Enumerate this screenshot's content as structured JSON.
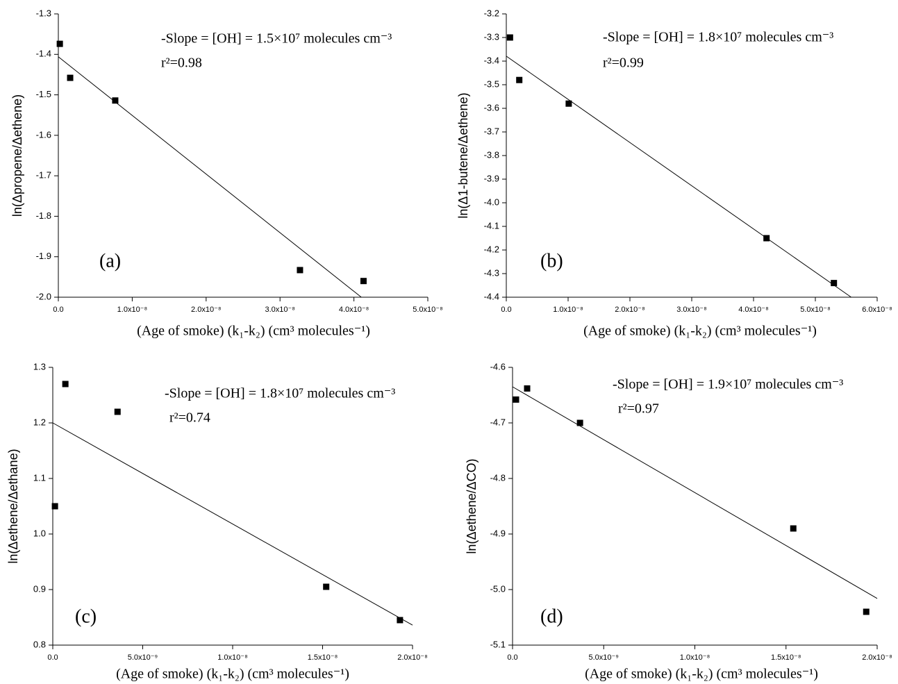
{
  "chart_data": [
    {
      "type": "scatter",
      "xlabel": "(Age of smoke) (k₁-k₂) (cm³ molecules⁻¹)",
      "ylabel": "ln(Δpropene/Δethene)",
      "annotations": [
        "-Slope = [OH] = 1.5×10⁷ molecules cm⁻³",
        "r²=0.98",
        "(a)"
      ],
      "x": [
        2e-10,
        1.6e-09,
        7.7e-09,
        3.27e-08,
        4.13e-08
      ],
      "values": [
        -1.374,
        -1.458,
        -1.514,
        -1.933,
        -1.96
      ],
      "color": "#000000",
      "fit": {
        "x": [
          0,
          4.1e-08
        ],
        "y": [
          -1.406,
          -2.0
        ]
      },
      "xlim": [
        0,
        5e-08
      ],
      "ylim": [
        -2.0,
        -1.3
      ],
      "xticks": [
        {
          "value": 0,
          "label": "0.0"
        },
        {
          "value": 1e-08,
          "label": "1.0x10⁻⁸"
        },
        {
          "value": 2e-08,
          "label": "2.0x10⁻⁸"
        },
        {
          "value": 3e-08,
          "label": "3.0x10⁻⁸"
        },
        {
          "value": 4e-08,
          "label": "4.0x10⁻⁸"
        },
        {
          "value": 5e-08,
          "label": "5.0x10⁻⁸"
        }
      ],
      "yticks": [
        {
          "value": -2.0,
          "label": "-2.0"
        },
        -1.9,
        -1.8,
        -1.7,
        -1.6,
        -1.5,
        -1.4,
        -1.3
      ]
    },
    {
      "type": "scatter",
      "xlabel": "(Age of smoke) (k₁-k₂) (cm³ molecules⁻¹)",
      "ylabel": "ln(Δ1-butene/Δethene)",
      "annotations": [
        "-Slope = [OH] = 1.8×10⁷ molecules cm⁻³",
        "r²=0.99",
        "(b)"
      ],
      "x": [
        6e-10,
        2.1e-09,
        1.01e-08,
        4.21e-08,
        5.3e-08
      ],
      "values": [
        -3.3,
        -3.48,
        -3.58,
        -4.15,
        -4.34
      ],
      "color": "#000000",
      "fit": {
        "x": [
          0,
          5.58e-08
        ],
        "y": [
          -3.379,
          -4.4
        ]
      },
      "xlim": [
        0,
        6e-08
      ],
      "ylim": [
        -4.4,
        -3.2
      ],
      "xticks": [
        {
          "value": 0,
          "label": "0.0"
        },
        {
          "value": 1e-08,
          "label": "1.0x10⁻⁸"
        },
        {
          "value": 2e-08,
          "label": "2.0x10⁻⁸"
        },
        {
          "value": 3e-08,
          "label": "3.0x10⁻⁸"
        },
        {
          "value": 4e-08,
          "label": "4.0x10⁻⁸"
        },
        {
          "value": 5e-08,
          "label": "5.0x10⁻⁸"
        },
        {
          "value": 6e-08,
          "label": "6.0x10⁻⁸"
        }
      ],
      "yticks": [
        -4.4,
        -4.3,
        -4.2,
        -4.1,
        {
          "value": -4.0,
          "label": "-4.0"
        },
        -3.9,
        -3.8,
        -3.7,
        -3.6,
        -3.5,
        -3.4,
        -3.3,
        -3.2
      ]
    },
    {
      "type": "scatter",
      "xlabel": "(Age of smoke) (k₁-k₂) (cm³ molecules⁻¹)",
      "ylabel": "ln(Δethene/Δethane)",
      "annotations": [
        "-Slope = [OH] = 1.8×10⁷ molecules cm⁻³",
        "r²=0.74",
        "(c)"
      ],
      "x": [
        1.2e-10,
        7e-10,
        3.6e-09,
        1.52e-08,
        1.93e-08
      ],
      "values": [
        1.05,
        1.27,
        1.22,
        0.905,
        0.845
      ],
      "color": "#000000",
      "fit": {
        "x": [
          0,
          2e-08
        ],
        "y": [
          1.2,
          0.836
        ]
      },
      "xlim": [
        0,
        2e-08
      ],
      "ylim": [
        0.8,
        1.3
      ],
      "xticks": [
        {
          "value": 0,
          "label": "0.0"
        },
        {
          "value": 5e-09,
          "label": "5.0x10⁻⁹"
        },
        {
          "value": 1e-08,
          "label": "1.0x10⁻⁸"
        },
        {
          "value": 1.5e-08,
          "label": "1.5x10⁻⁸"
        },
        {
          "value": 2e-08,
          "label": "2.0x10⁻⁸"
        }
      ],
      "yticks": [
        0.8,
        0.9,
        {
          "value": 1.0,
          "label": "1.0"
        },
        1.1,
        1.2,
        1.3
      ]
    },
    {
      "type": "scatter",
      "xlabel": "(Age of smoke) (k₁-k₂) (cm³ molecules⁻¹)",
      "ylabel": "ln(Δethene/ΔCO)",
      "annotations": [
        "-Slope = [OH] = 1.9×10⁷ molecules cm⁻³",
        "r²=0.97",
        "(d)"
      ],
      "x": [
        1.9e-10,
        8e-10,
        3.7e-09,
        1.54e-08,
        1.94e-08
      ],
      "values": [
        -4.658,
        -4.638,
        -4.7,
        -4.89,
        -5.04
      ],
      "color": "#000000",
      "fit": {
        "x": [
          0,
          2e-08
        ],
        "y": [
          -4.635,
          -5.016
        ]
      },
      "xlim": [
        0,
        2e-08
      ],
      "ylim": [
        -5.1,
        -4.6
      ],
      "xticks": [
        {
          "value": 0,
          "label": "0.0"
        },
        {
          "value": 5e-09,
          "label": "5.0x10⁻⁹"
        },
        {
          "value": 1e-08,
          "label": "1.0x10⁻⁸"
        },
        {
          "value": 1.5e-08,
          "label": "1.5x10⁻⁸"
        },
        {
          "value": 2e-08,
          "label": "2.0x10⁻⁸"
        }
      ],
      "yticks": [
        -5.1,
        {
          "value": -5.0,
          "label": "-5.0"
        },
        -4.9,
        -4.8,
        -4.7,
        -4.6
      ]
    }
  ]
}
